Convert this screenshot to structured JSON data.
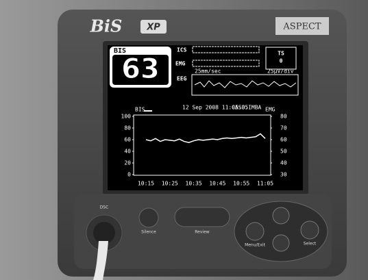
{
  "device": {
    "brand": "BiS",
    "model": "XP",
    "maker": "ASPECT"
  },
  "screen": {
    "bis_label": "BIS",
    "bis_value": 63,
    "ics_label": "ICS",
    "emg_label": "EMG",
    "eeg_label": "EEG",
    "sweep": "25mm/sec",
    "gain": "25µV/div",
    "ts_label": "TS",
    "ts_value": 0
  },
  "chart_data": {
    "type": "line",
    "title": "12 Sep 2008 11:05:35",
    "subtitle": "CASO:IMBA",
    "categories": [
      "10:15",
      null,
      null,
      null,
      null,
      "10:25",
      null,
      null,
      null,
      null,
      "10:35",
      null,
      null,
      null,
      null,
      "10:45",
      null,
      null,
      null,
      null,
      "10:55",
      null,
      null,
      null,
      null,
      "11:05"
    ],
    "series": [
      {
        "name": "BIS",
        "color": "#ffffff",
        "values": [
          60,
          58,
          62,
          57,
          60,
          59,
          58,
          61,
          57,
          55,
          58,
          60,
          59,
          60,
          61,
          60,
          62,
          63,
          62,
          63,
          64,
          63,
          64,
          65,
          70,
          62
        ]
      }
    ],
    "y2label": "EMG",
    "ylim": [
      0,
      100
    ],
    "yticks": [
      0,
      20,
      40,
      60,
      80,
      100
    ],
    "y2lim": [
      30,
      80
    ],
    "y2ticks": [
      30,
      40,
      50,
      60,
      70,
      80
    ]
  },
  "buttons": {
    "dsc": "DSC",
    "silence": "Silence",
    "review": "Review",
    "menu": "Menu/Exit",
    "select": "Select"
  }
}
